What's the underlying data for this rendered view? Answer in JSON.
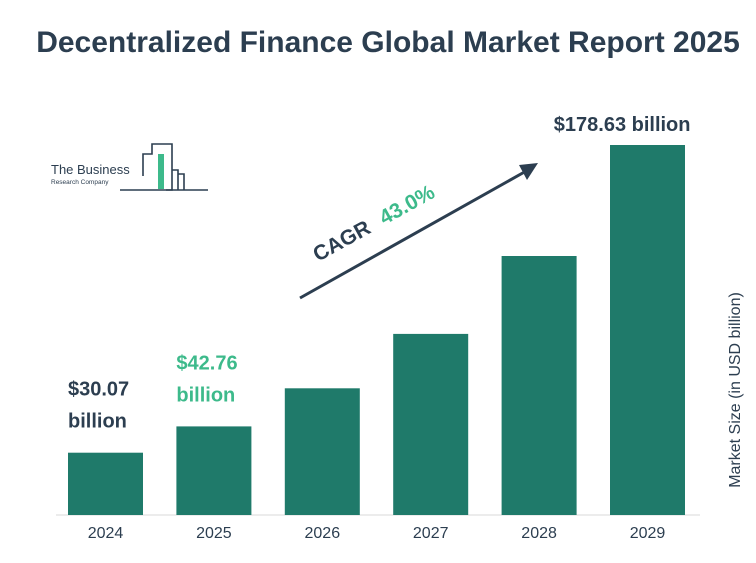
{
  "title": "Decentralized Finance Global Market Report 2025",
  "logo": {
    "name": "The Business",
    "subname": "Research Company"
  },
  "cagr": {
    "label": "CAGR",
    "value": "43.0%"
  },
  "colors": {
    "bar": "#1f7a6a",
    "title": "#2c3e50",
    "highlight": "#3dba8b",
    "arrow": "#2c3e50"
  },
  "chart_data": {
    "type": "bar",
    "title": "Decentralized Finance Global Market Report 2025",
    "xlabel": "",
    "ylabel": "Market Size (in USD billion)",
    "categories": [
      "2024",
      "2025",
      "2026",
      "2027",
      "2028",
      "2029"
    ],
    "values": [
      30.07,
      42.76,
      61.15,
      87.44,
      125.04,
      178.63
    ],
    "data_labels": [
      "$30.07 billion",
      "$42.76 billion",
      "",
      "",
      "",
      "$178.63 billion"
    ],
    "ylim": [
      0,
      180
    ],
    "grid": false,
    "legend": "none"
  }
}
